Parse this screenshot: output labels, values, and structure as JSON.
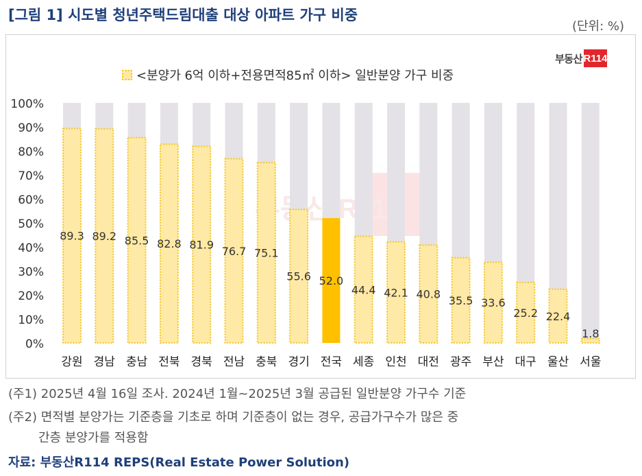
{
  "title": "[그림 1] 시도별 청년주택드림대출 대상 아파트 가구 비중",
  "unit_label": "(단위: %)",
  "logo": {
    "text": "부동산",
    "box_text": "R114"
  },
  "watermark": "부동산 R114",
  "legend_label": "<분양가 6억 이하+전용면적85㎡ 이하> 일반분양 가구 비중",
  "notes": [
    "(주1) 2025년 4월 16일 조사. 2024년 1월~2025년 3월 공급된 일반분양 가구수 기준",
    "(주2) 면적별 분양가는 기준층을 기초로 하며 기준층이 없는 경우, 공급가구수가 많은 중",
    "간층 분양가를 적용함"
  ],
  "source": "자료: 부동산R114 REPS(Real Estate Power Solution)",
  "colors": {
    "bar_fill": "#ffe9a6",
    "bar_border": "#f3c623",
    "highlight_fill": "#ffc000",
    "background_bar": "#e4e2e6",
    "title": "#1f3f7a",
    "logo_red": "#e1262c"
  },
  "chart_data": {
    "type": "bar",
    "categories": [
      "강원",
      "경남",
      "충남",
      "전북",
      "경북",
      "전남",
      "충북",
      "경기",
      "전국",
      "세종",
      "인천",
      "대전",
      "광주",
      "부산",
      "대구",
      "울산",
      "서울"
    ],
    "values": [
      89.3,
      89.2,
      85.5,
      82.8,
      81.9,
      76.7,
      75.1,
      55.6,
      52.0,
      44.4,
      42.1,
      40.8,
      35.5,
      33.6,
      25.2,
      22.4,
      1.8
    ],
    "value_labels": [
      "89.3",
      "89.2",
      "85.5",
      "82.8",
      "81.9",
      "76.7",
      "75.1",
      "55.6",
      "52.0",
      "44.4",
      "42.1",
      "40.8",
      "35.5",
      "33.6",
      "25.2",
      "22.4",
      "1.8"
    ],
    "highlight_category": "전국",
    "ylim": [
      0,
      100
    ],
    "yticks": [
      "0%",
      "10%",
      "20%",
      "30%",
      "40%",
      "50%",
      "60%",
      "70%",
      "80%",
      "90%",
      "100%"
    ],
    "series": [
      {
        "name": "<분양가 6억 이하+전용면적85㎡ 이하> 일반분양 가구 비중",
        "values": [
          89.3,
          89.2,
          85.5,
          82.8,
          81.9,
          76.7,
          75.1,
          55.6,
          52.0,
          44.4,
          42.1,
          40.8,
          35.5,
          33.6,
          25.2,
          22.4,
          1.8
        ]
      }
    ],
    "grid": false,
    "legend_position": "top-center"
  }
}
